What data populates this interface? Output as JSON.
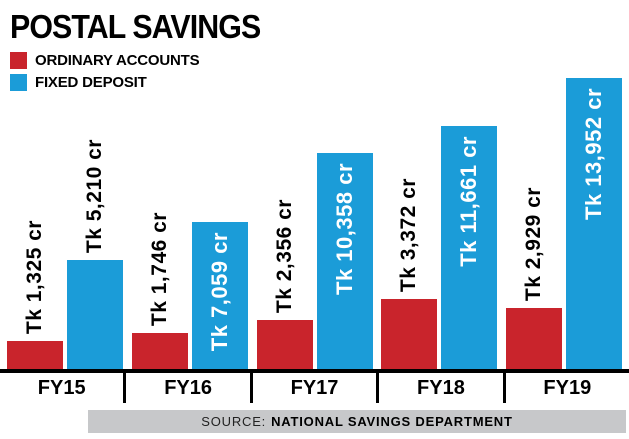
{
  "title": "POSTAL SAVINGS",
  "legend": [
    {
      "label": "ORDINARY ACCOUNTS",
      "color": "#c9242c"
    },
    {
      "label": "FIXED DEPOSIT",
      "color": "#1b9cd8"
    }
  ],
  "source": {
    "prefix": "SOURCE:",
    "text": "NATIONAL SAVINGS DEPARTMENT"
  },
  "chart_data": {
    "type": "bar",
    "title": "POSTAL SAVINGS",
    "categories": [
      "FY15",
      "FY16",
      "FY17",
      "FY18",
      "FY19"
    ],
    "series": [
      {
        "name": "ORDINARY ACCOUNTS",
        "color": "#c9242c",
        "values": [
          1325,
          1746,
          2356,
          3372,
          2929
        ],
        "labels": [
          "Tk 1,325 cr",
          "Tk 1,746 cr",
          "Tk 2,356 cr",
          "Tk 3,372 cr",
          "Tk 2,929 cr"
        ],
        "label_positions": [
          "above",
          "above",
          "above",
          "above",
          "above"
        ]
      },
      {
        "name": "FIXED DEPOSIT",
        "color": "#1b9cd8",
        "values": [
          5210,
          7059,
          10358,
          11661,
          13952
        ],
        "labels": [
          "Tk 5,210 cr",
          "Tk 7,059 cr",
          "Tk 10,358 cr",
          "Tk 11,661 cr",
          "Tk 13,952 cr"
        ],
        "label_positions": [
          "above",
          "inside",
          "inside",
          "inside",
          "inside"
        ]
      }
    ],
    "unit": "cr",
    "currency": "Tk",
    "ylim": [
      0,
      14200
    ],
    "grid": false,
    "legend_position": "top-left",
    "source": "SOURCE: NATIONAL SAVINGS DEPARTMENT"
  }
}
